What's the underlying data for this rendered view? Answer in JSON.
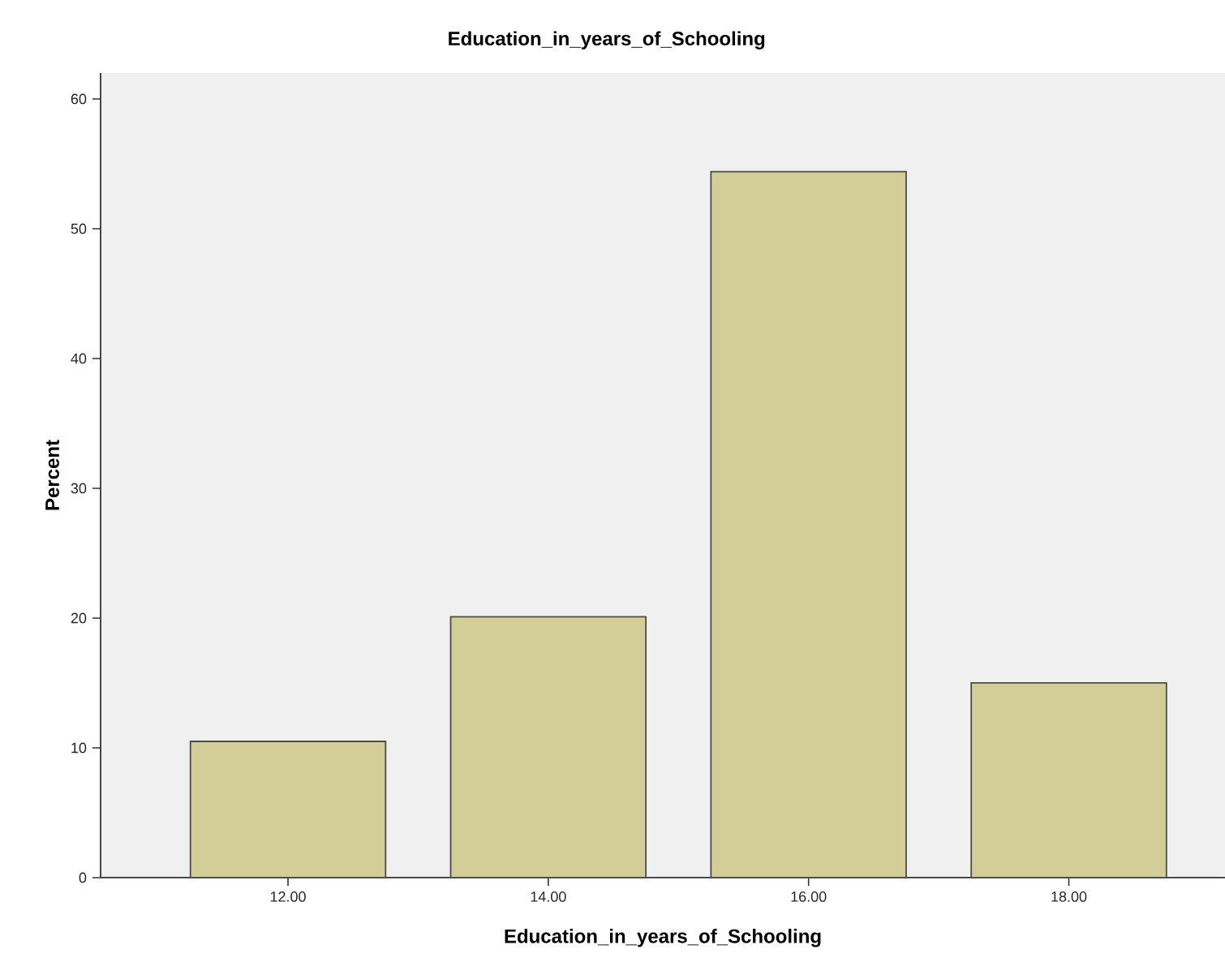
{
  "chart_data": {
    "type": "bar",
    "title": "Education_in_years_of_Schooling",
    "xlabel": "Education_in_years_of_Schooling",
    "ylabel": "Percent",
    "categories": [
      "12.00",
      "14.00",
      "16.00",
      "18.00"
    ],
    "values": [
      10.5,
      20.1,
      54.4,
      15.0
    ],
    "color": "#d3ce98",
    "ylim": [
      0,
      62
    ],
    "yticks": [
      0,
      10,
      20,
      30,
      40,
      50,
      60
    ]
  }
}
